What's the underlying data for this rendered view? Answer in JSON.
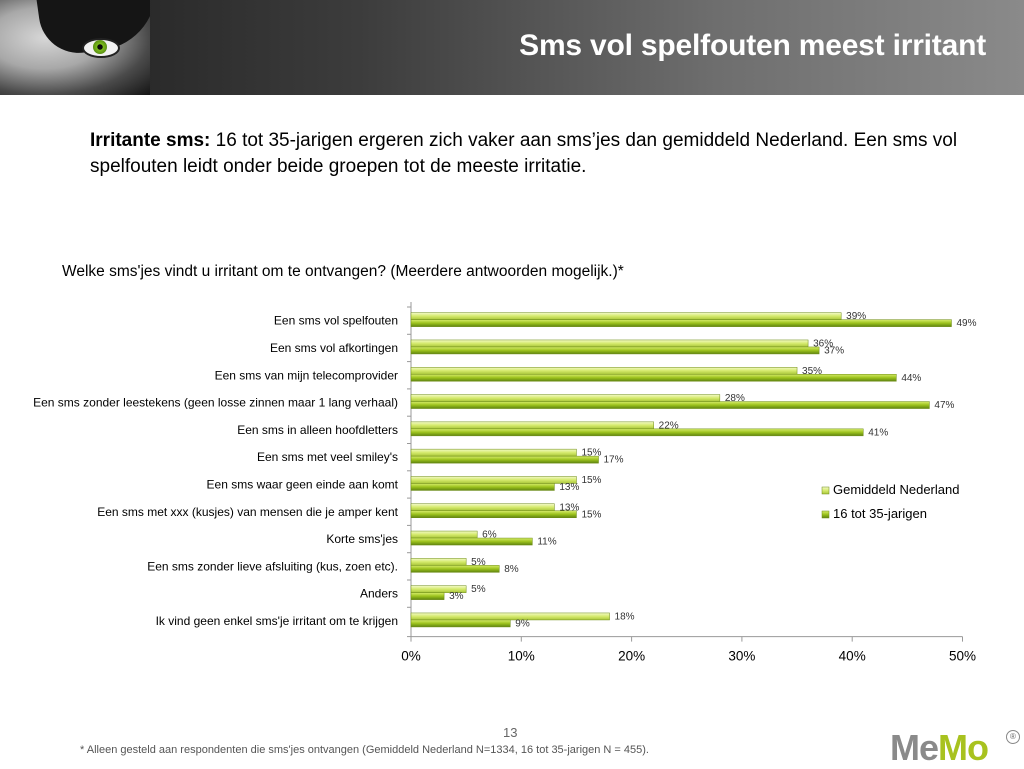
{
  "header": {
    "title": "Sms vol spelfouten meest irritant"
  },
  "intro": {
    "bold": "Irritante sms:",
    "text": " 16 tot 35-jarigen ergeren zich vaker aan sms’jes dan gemiddeld Nederland. Een sms vol spelfouten leidt onder beide groepen tot de meeste irritatie."
  },
  "footer": {
    "footnote": "* Alleen gesteld aan respondenten die sms'jes ontvangen (Gemiddeld Nederland N=1334, 16 tot 35-jarigen N = 455).",
    "page": "13",
    "logo_me": "Me",
    "logo_mo": "Mo",
    "logo_reg": "®"
  },
  "chart_data": {
    "type": "bar",
    "orientation": "horizontal",
    "title": "Welke sms'jes vindt u irritant om te ontvangen? (Meerdere antwoorden mogelijk.)*",
    "categories": [
      "Een sms vol spelfouten",
      "Een sms vol afkortingen",
      "Een sms van mijn telecomprovider",
      "Een sms zonder leestekens (geen losse zinnen maar 1 lang verhaal)",
      "Een sms in alleen hoofdletters",
      "Een sms met veel smiley's",
      "Een sms waar geen einde aan komt",
      "Een sms met xxx (kusjes) van mensen die je amper kent",
      "Korte sms'jes",
      "Een sms zonder lieve afsluiting (kus, zoen etc).",
      "Anders",
      "Ik vind geen enkel sms'je irritant om te krijgen"
    ],
    "series": [
      {
        "name": "Gemiddeld Nederland",
        "color": "#d9ec7a",
        "values": [
          39,
          36,
          35,
          28,
          22,
          15,
          15,
          13,
          6,
          5,
          5,
          18
        ]
      },
      {
        "name": "16 tot 35-jarigen",
        "color": "#9bc21c",
        "values": [
          49,
          37,
          44,
          47,
          41,
          17,
          13,
          15,
          11,
          8,
          3,
          9
        ]
      }
    ],
    "value_suffix": "%",
    "xlim": [
      0,
      50
    ],
    "xticks": [
      0,
      10,
      20,
      30,
      40,
      50
    ],
    "xtick_labels": [
      "0%",
      "10%",
      "20%",
      "30%",
      "40%",
      "50%"
    ],
    "grid": false,
    "legend_position": "right"
  }
}
